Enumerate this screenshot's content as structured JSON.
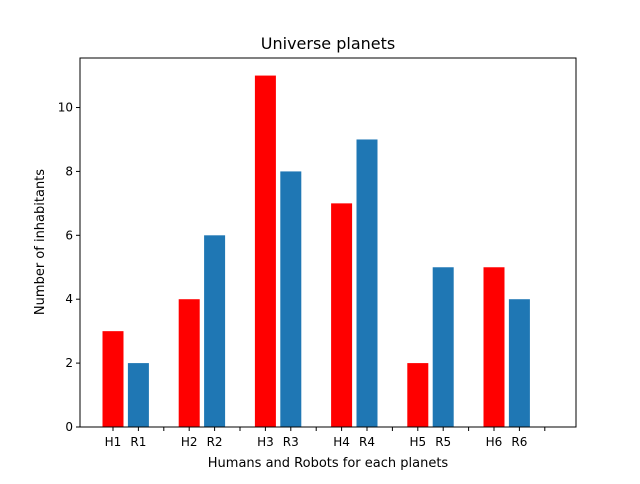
{
  "chart_data": {
    "type": "bar",
    "title": "Universe planets",
    "xlabel": "Humans and Robots for each planets",
    "ylabel": "Number of inhabitants",
    "ylim": [
      0,
      11.55
    ],
    "yticks": [
      0,
      2,
      4,
      6,
      8,
      10
    ],
    "grid": false,
    "bars": [
      {
        "label": "H1",
        "value": 3,
        "color": "#ff0000"
      },
      {
        "label": "R1",
        "value": 2,
        "color": "#1f77b4"
      },
      {
        "label": "H2",
        "value": 4,
        "color": "#ff0000"
      },
      {
        "label": "R2",
        "value": 6,
        "color": "#1f77b4"
      },
      {
        "label": "H3",
        "value": 11,
        "color": "#ff0000"
      },
      {
        "label": "R3",
        "value": 8,
        "color": "#1f77b4"
      },
      {
        "label": "H4",
        "value": 7,
        "color": "#ff0000"
      },
      {
        "label": "R4",
        "value": 9,
        "color": "#1f77b4"
      },
      {
        "label": "H5",
        "value": 2,
        "color": "#ff0000"
      },
      {
        "label": "R5",
        "value": 5,
        "color": "#1f77b4"
      },
      {
        "label": "H6",
        "value": 5,
        "color": "#ff0000"
      },
      {
        "label": "R6",
        "value": 4,
        "color": "#1f77b4"
      }
    ]
  }
}
